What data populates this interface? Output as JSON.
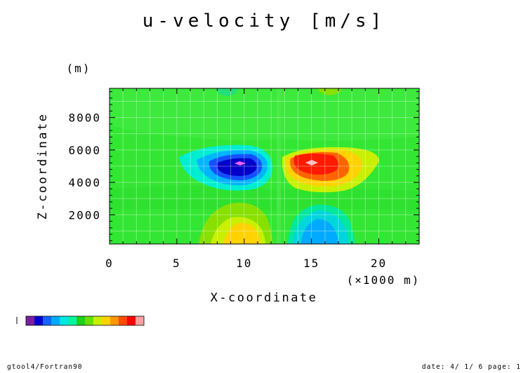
{
  "chart_data": {
    "type": "heatmap",
    "title": "u-velocity [m/s]",
    "xlabel": "X-coordinate",
    "x_unit": "(×1000 m)",
    "ylabel": "Z-coordinate",
    "y_unit": "(m)",
    "xlim": [
      0,
      23
    ],
    "ylim": [
      200,
      9800
    ],
    "x_ticks": [
      "0",
      "5",
      "10",
      "15",
      "20"
    ],
    "y_ticks": [
      "2000",
      "4000",
      "6000",
      "8000"
    ],
    "colorbar_colors": [
      "#7a1fa2",
      "#0000cd",
      "#1464ff",
      "#00aaff",
      "#00e5e5",
      "#00f5a0",
      "#1ecf1e",
      "#66e000",
      "#c8f000",
      "#ffd200",
      "#ff9600",
      "#ff4b00",
      "#ff0000",
      "#ffa0a0"
    ],
    "background_color": "#33e633",
    "features": [
      {
        "label": "negative core",
        "x": 10.0,
        "z": 5200,
        "level": "strong negative"
      },
      {
        "label": "positive core",
        "x": 15.0,
        "z": 5000,
        "level": "strong positive"
      },
      {
        "label": "positive lobe",
        "x": 9.5,
        "z": 600,
        "level": "weak positive"
      },
      {
        "label": "negative lobe",
        "x": 15.0,
        "z": 600,
        "level": "weak negative"
      }
    ]
  },
  "footer": {
    "left": "gtool4/Fortran90",
    "right": "date: 4/ 1/ 6 page: 1"
  }
}
